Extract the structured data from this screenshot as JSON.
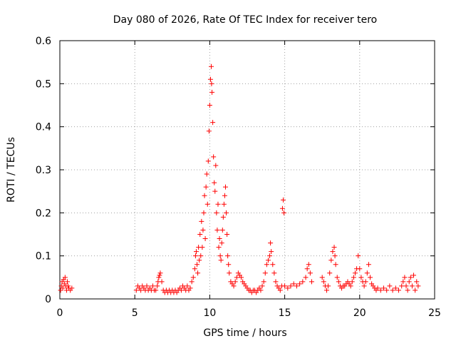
{
  "chart_data": {
    "type": "scatter",
    "title": "Day 080 of 2026, Rate Of TEC Index for receiver tero",
    "xlabel": "GPS time / hours",
    "ylabel": "ROTI / TECUs",
    "xlim": [
      0,
      25
    ],
    "ylim": [
      0,
      0.6
    ],
    "xticks": [
      0,
      5,
      10,
      15,
      20,
      25
    ],
    "yticks": [
      0,
      0.1,
      0.2,
      0.3,
      0.4,
      0.5,
      0.6
    ],
    "xtick_labels": [
      "0",
      "5",
      "10",
      "15",
      "20",
      "25"
    ],
    "ytick_labels": [
      "0",
      "0.1",
      "0.2",
      "0.3",
      "0.4",
      "0.5",
      "0.6"
    ],
    "grid": true,
    "marker": "+",
    "marker_color": "#ff0000",
    "series": [
      {
        "name": "ROTI",
        "points": [
          [
            0.05,
            0.02
          ],
          [
            0.1,
            0.03
          ],
          [
            0.15,
            0.04
          ],
          [
            0.2,
            0.025
          ],
          [
            0.25,
            0.045
          ],
          [
            0.3,
            0.035
          ],
          [
            0.35,
            0.05
          ],
          [
            0.4,
            0.03
          ],
          [
            0.45,
            0.02
          ],
          [
            0.5,
            0.04
          ],
          [
            0.55,
            0.03
          ],
          [
            0.6,
            0.025
          ],
          [
            0.7,
            0.02
          ],
          [
            0.8,
            0.025
          ],
          [
            5.1,
            0.02
          ],
          [
            5.2,
            0.03
          ],
          [
            5.3,
            0.025
          ],
          [
            5.4,
            0.02
          ],
          [
            5.5,
            0.03
          ],
          [
            5.6,
            0.025
          ],
          [
            5.7,
            0.02
          ],
          [
            5.8,
            0.03
          ],
          [
            5.9,
            0.02
          ],
          [
            6.0,
            0.025
          ],
          [
            6.1,
            0.02
          ],
          [
            6.2,
            0.03
          ],
          [
            6.3,
            0.02
          ],
          [
            6.4,
            0.02
          ],
          [
            6.5,
            0.03
          ],
          [
            6.55,
            0.04
          ],
          [
            6.6,
            0.05
          ],
          [
            6.65,
            0.055
          ],
          [
            6.7,
            0.06
          ],
          [
            6.8,
            0.04
          ],
          [
            6.9,
            0.02
          ],
          [
            7.0,
            0.015
          ],
          [
            7.1,
            0.02
          ],
          [
            7.2,
            0.015
          ],
          [
            7.3,
            0.02
          ],
          [
            7.4,
            0.015
          ],
          [
            7.5,
            0.02
          ],
          [
            7.6,
            0.015
          ],
          [
            7.7,
            0.02
          ],
          [
            7.8,
            0.015
          ],
          [
            7.9,
            0.02
          ],
          [
            8.0,
            0.025
          ],
          [
            8.1,
            0.02
          ],
          [
            8.2,
            0.03
          ],
          [
            8.3,
            0.025
          ],
          [
            8.4,
            0.02
          ],
          [
            8.5,
            0.03
          ],
          [
            8.6,
            0.02
          ],
          [
            8.7,
            0.025
          ],
          [
            8.8,
            0.04
          ],
          [
            8.9,
            0.05
          ],
          [
            9.0,
            0.07
          ],
          [
            9.05,
            0.1
          ],
          [
            9.1,
            0.11
          ],
          [
            9.15,
            0.08
          ],
          [
            9.2,
            0.06
          ],
          [
            9.25,
            0.12
          ],
          [
            9.3,
            0.09
          ],
          [
            9.35,
            0.15
          ],
          [
            9.4,
            0.1
          ],
          [
            9.45,
            0.18
          ],
          [
            9.5,
            0.12
          ],
          [
            9.55,
            0.16
          ],
          [
            9.6,
            0.2
          ],
          [
            9.65,
            0.24
          ],
          [
            9.7,
            0.14
          ],
          [
            9.75,
            0.26
          ],
          [
            9.8,
            0.29
          ],
          [
            9.85,
            0.22
          ],
          [
            9.9,
            0.32
          ],
          [
            9.95,
            0.39
          ],
          [
            10.0,
            0.45
          ],
          [
            10.05,
            0.51
          ],
          [
            10.1,
            0.54
          ],
          [
            10.12,
            0.5
          ],
          [
            10.15,
            0.48
          ],
          [
            10.2,
            0.41
          ],
          [
            10.25,
            0.33
          ],
          [
            10.3,
            0.27
          ],
          [
            10.35,
            0.25
          ],
          [
            10.4,
            0.31
          ],
          [
            10.45,
            0.2
          ],
          [
            10.5,
            0.16
          ],
          [
            10.55,
            0.22
          ],
          [
            10.6,
            0.12
          ],
          [
            10.65,
            0.14
          ],
          [
            10.7,
            0.1
          ],
          [
            10.75,
            0.09
          ],
          [
            10.8,
            0.13
          ],
          [
            10.85,
            0.16
          ],
          [
            10.9,
            0.19
          ],
          [
            10.95,
            0.22
          ],
          [
            11.0,
            0.24
          ],
          [
            11.05,
            0.26
          ],
          [
            11.1,
            0.2
          ],
          [
            11.15,
            0.15
          ],
          [
            11.2,
            0.1
          ],
          [
            11.25,
            0.08
          ],
          [
            11.3,
            0.06
          ],
          [
            11.4,
            0.04
          ],
          [
            11.5,
            0.035
          ],
          [
            11.6,
            0.03
          ],
          [
            11.7,
            0.04
          ],
          [
            11.8,
            0.05
          ],
          [
            11.9,
            0.06
          ],
          [
            12.0,
            0.055
          ],
          [
            12.1,
            0.05
          ],
          [
            12.2,
            0.04
          ],
          [
            12.3,
            0.035
          ],
          [
            12.4,
            0.03
          ],
          [
            12.5,
            0.025
          ],
          [
            12.6,
            0.02
          ],
          [
            12.7,
            0.02
          ],
          [
            12.8,
            0.015
          ],
          [
            12.9,
            0.02
          ],
          [
            13.0,
            0.02
          ],
          [
            13.1,
            0.015
          ],
          [
            13.2,
            0.02
          ],
          [
            13.3,
            0.025
          ],
          [
            13.4,
            0.02
          ],
          [
            13.5,
            0.03
          ],
          [
            13.6,
            0.04
          ],
          [
            13.7,
            0.06
          ],
          [
            13.8,
            0.08
          ],
          [
            13.9,
            0.09
          ],
          [
            14.0,
            0.1
          ],
          [
            14.05,
            0.13
          ],
          [
            14.1,
            0.11
          ],
          [
            14.2,
            0.08
          ],
          [
            14.3,
            0.06
          ],
          [
            14.4,
            0.04
          ],
          [
            14.5,
            0.03
          ],
          [
            14.6,
            0.025
          ],
          [
            14.7,
            0.02
          ],
          [
            14.8,
            0.03
          ],
          [
            14.85,
            0.21
          ],
          [
            14.9,
            0.23
          ],
          [
            14.95,
            0.2
          ],
          [
            15.0,
            0.03
          ],
          [
            15.2,
            0.025
          ],
          [
            15.4,
            0.03
          ],
          [
            15.6,
            0.035
          ],
          [
            15.8,
            0.03
          ],
          [
            16.0,
            0.035
          ],
          [
            16.2,
            0.04
          ],
          [
            16.4,
            0.05
          ],
          [
            16.5,
            0.07
          ],
          [
            16.6,
            0.08
          ],
          [
            16.7,
            0.06
          ],
          [
            16.8,
            0.04
          ],
          [
            17.5,
            0.05
          ],
          [
            17.6,
            0.04
          ],
          [
            17.7,
            0.03
          ],
          [
            17.8,
            0.02
          ],
          [
            17.9,
            0.03
          ],
          [
            18.0,
            0.06
          ],
          [
            18.1,
            0.09
          ],
          [
            18.2,
            0.11
          ],
          [
            18.3,
            0.12
          ],
          [
            18.35,
            0.1
          ],
          [
            18.4,
            0.08
          ],
          [
            18.5,
            0.05
          ],
          [
            18.6,
            0.04
          ],
          [
            18.7,
            0.03
          ],
          [
            18.8,
            0.025
          ],
          [
            18.9,
            0.03
          ],
          [
            19.0,
            0.03
          ],
          [
            19.1,
            0.035
          ],
          [
            19.2,
            0.04
          ],
          [
            19.3,
            0.035
          ],
          [
            19.4,
            0.03
          ],
          [
            19.5,
            0.04
          ],
          [
            19.6,
            0.05
          ],
          [
            19.7,
            0.06
          ],
          [
            19.8,
            0.07
          ],
          [
            19.9,
            0.1
          ],
          [
            20.0,
            0.07
          ],
          [
            20.1,
            0.05
          ],
          [
            20.2,
            0.04
          ],
          [
            20.3,
            0.03
          ],
          [
            20.4,
            0.04
          ],
          [
            20.5,
            0.06
          ],
          [
            20.6,
            0.08
          ],
          [
            20.7,
            0.05
          ],
          [
            20.8,
            0.035
          ],
          [
            20.9,
            0.03
          ],
          [
            21.0,
            0.025
          ],
          [
            21.1,
            0.02
          ],
          [
            21.2,
            0.025
          ],
          [
            21.4,
            0.02
          ],
          [
            21.6,
            0.025
          ],
          [
            21.8,
            0.02
          ],
          [
            22.0,
            0.03
          ],
          [
            22.2,
            0.02
          ],
          [
            22.4,
            0.025
          ],
          [
            22.6,
            0.02
          ],
          [
            22.8,
            0.03
          ],
          [
            22.9,
            0.04
          ],
          [
            23.0,
            0.05
          ],
          [
            23.1,
            0.03
          ],
          [
            23.2,
            0.02
          ],
          [
            23.3,
            0.04
          ],
          [
            23.4,
            0.05
          ],
          [
            23.5,
            0.03
          ],
          [
            23.6,
            0.055
          ],
          [
            23.7,
            0.02
          ],
          [
            23.8,
            0.04
          ],
          [
            23.9,
            0.03
          ]
        ]
      }
    ]
  }
}
